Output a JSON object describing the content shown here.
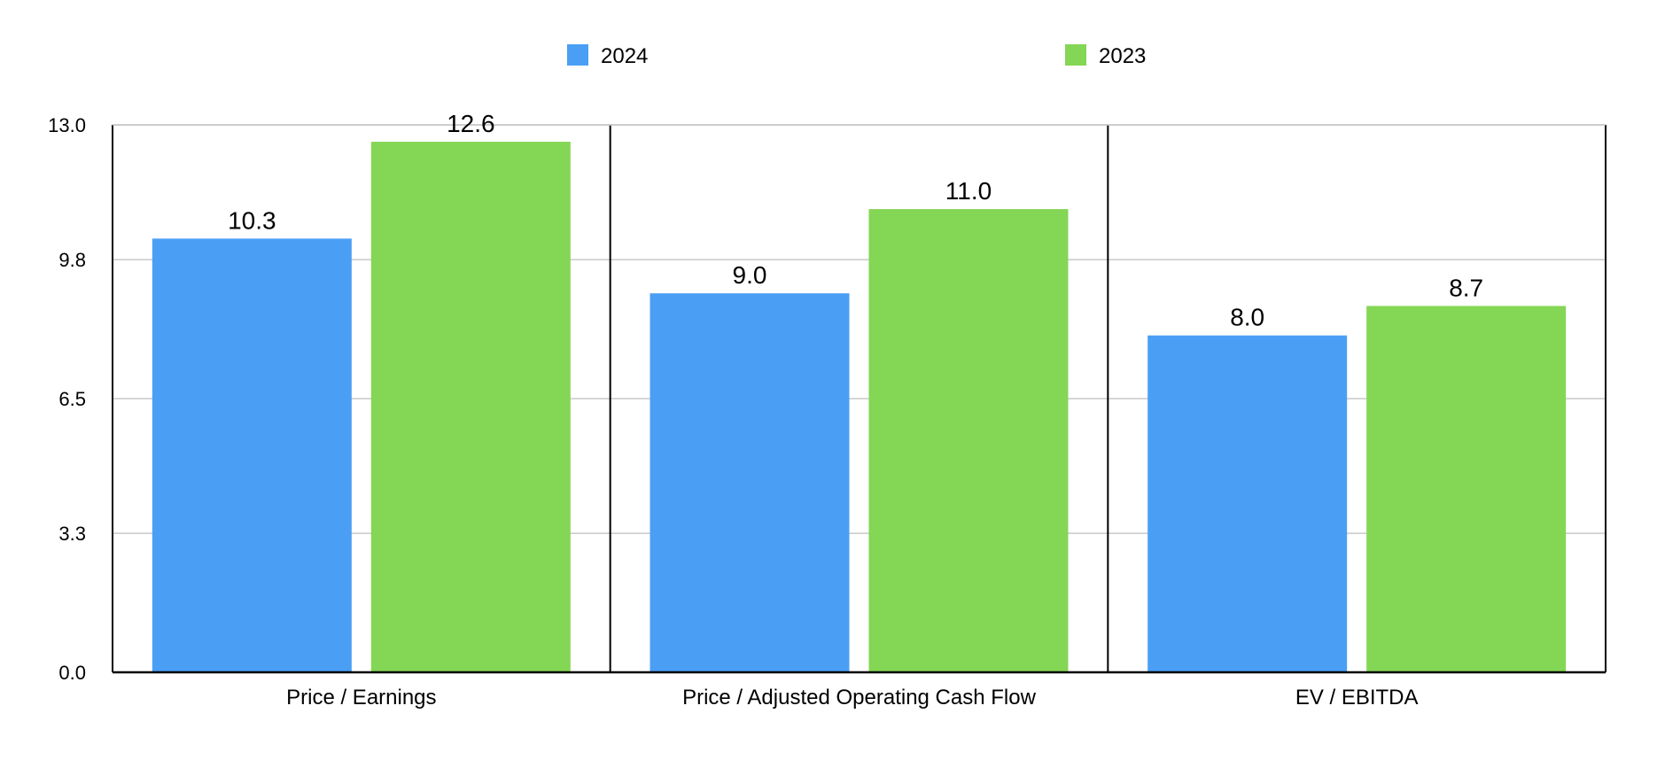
{
  "chart_data": {
    "type": "bar",
    "categories": [
      "Price / Earnings",
      "Price / Adjusted Operating Cash Flow",
      "EV / EBITDA"
    ],
    "series": [
      {
        "name": "2024",
        "color": "#4a9ff5",
        "values": [
          10.3,
          9.0,
          8.0
        ],
        "labels": [
          "10.3",
          "9.0",
          "8.0"
        ]
      },
      {
        "name": "2023",
        "color": "#84d655",
        "values": [
          12.6,
          11.0,
          8.7
        ],
        "labels": [
          "12.6",
          "11.0",
          "8.7"
        ]
      }
    ],
    "ylim": [
      0,
      13.0
    ],
    "yticks": [
      0.0,
      3.3,
      6.5,
      9.8,
      13.0
    ],
    "ytick_labels": [
      "0.0",
      "3.3",
      "6.5",
      "9.8",
      "13.0"
    ],
    "grid": true,
    "legend_position": "top-center",
    "title": "",
    "xlabel": "",
    "ylabel": ""
  }
}
